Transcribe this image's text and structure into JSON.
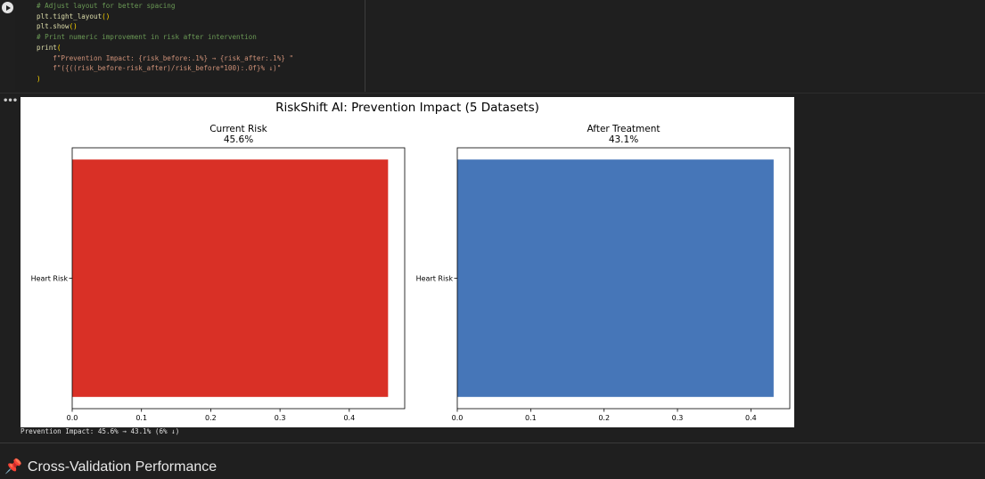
{
  "code": {
    "lines": [
      {
        "type": "comment",
        "text": "# Adjust layout for better spacing"
      },
      {
        "type": "call",
        "fn": "plt.tight_layout",
        "args": ""
      },
      {
        "type": "call",
        "fn": "plt.show",
        "args": ""
      },
      {
        "type": "comment",
        "text": "# Print numeric improvement in risk after intervention"
      },
      {
        "type": "open",
        "fn": "print"
      },
      {
        "type": "fstr1",
        "text": "    f\"Prevention Impact: {risk_before:.1%} → {risk_after:.1%} \""
      },
      {
        "type": "fstr2",
        "text": "    f\"({((risk_before-risk_after)/risk_before*100):.0f}% ↓)\""
      },
      {
        "type": "close",
        "text": ")"
      }
    ]
  },
  "output": {
    "toggle_label": "•••",
    "print_text": "Prevention Impact: 45.6% → 43.1% (6% ↓)"
  },
  "section": {
    "icon": "pin-icon",
    "icon_glyph": "📌",
    "title": "Cross-Validation Performance"
  },
  "colors": {
    "current_bar": "#d93026",
    "after_bar": "#4676b8"
  },
  "chart_data": {
    "type": "bar",
    "orientation": "horizontal",
    "title": "RiskShift AI: Prevention Impact (5 Datasets)",
    "panels": [
      {
        "title": "Current Risk",
        "subtitle": "45.6%",
        "categories": [
          "Heart Risk"
        ],
        "values": [
          0.456
        ],
        "xlim": [
          0,
          0.48
        ],
        "xticks": [
          "0.0",
          "0.1",
          "0.2",
          "0.3",
          "0.4"
        ],
        "xtick_values": [
          0,
          0.1,
          0.2,
          0.3,
          0.4
        ],
        "color": "#d93026"
      },
      {
        "title": "After Treatment",
        "subtitle": "43.1%",
        "categories": [
          "Heart Risk"
        ],
        "values": [
          0.431
        ],
        "xlim": [
          0,
          0.453
        ],
        "xticks": [
          "0.0",
          "0.1",
          "0.2",
          "0.3",
          "0.4"
        ],
        "xtick_values": [
          0,
          0.1,
          0.2,
          0.3,
          0.4
        ],
        "color": "#4676b8"
      }
    ]
  }
}
